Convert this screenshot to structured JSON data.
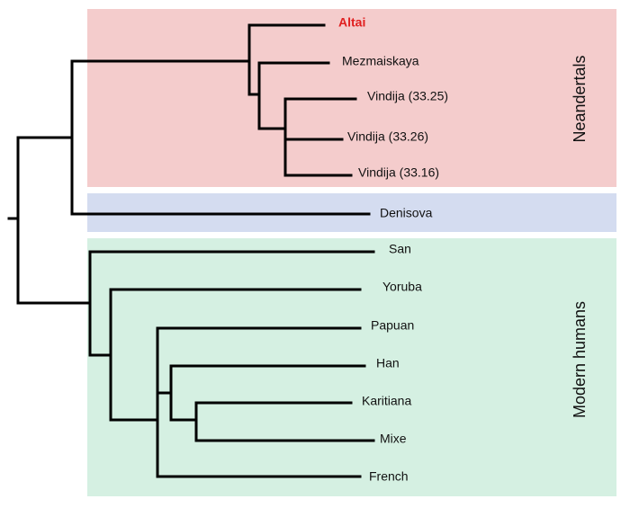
{
  "groups": [
    {
      "label": "Neandertals"
    },
    {
      "label": "Modern humans"
    }
  ],
  "leaves": [
    {
      "label": "Altai"
    },
    {
      "label": "Mezmaiskaya"
    },
    {
      "label": "Vindija (33.25)"
    },
    {
      "label": "Vindija (33.26)"
    },
    {
      "label": "Vindija (33.16)"
    },
    {
      "label": "Denisova"
    },
    {
      "label": "San"
    },
    {
      "label": "Yoruba"
    },
    {
      "label": "Papuan"
    },
    {
      "label": "Han"
    },
    {
      "label": "Karitiana"
    },
    {
      "label": "Mixe"
    },
    {
      "label": "French"
    }
  ]
}
